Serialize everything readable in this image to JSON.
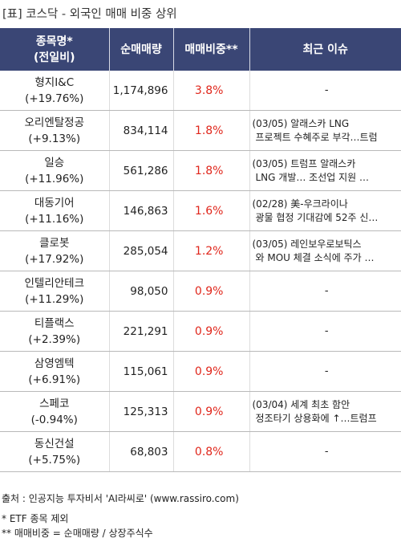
{
  "title": "[표] 코스닥 - 외국인 매매 비중 상위",
  "columns": {
    "name_line1": "종목명*",
    "name_line2": "(전일비)",
    "volume": "순매매량",
    "ratio": "매매비중**",
    "issue": "최근 이슈"
  },
  "rows": [
    {
      "name": "형지I&C",
      "change": "(+19.76%)",
      "volume": "1,174,896",
      "ratio": "3.8%",
      "issue1": "",
      "issue2": "",
      "issue_empty": "-"
    },
    {
      "name": "오리엔탈정공",
      "change": "(+9.13%)",
      "volume": "834,114",
      "ratio": "1.8%",
      "issue1": "(03/05) 알래스카 LNG",
      "issue2": "프로젝트 수혜주로 부각…트럼",
      "issue_empty": ""
    },
    {
      "name": "일승",
      "change": "(+11.96%)",
      "volume": "561,286",
      "ratio": "1.8%",
      "issue1": "(03/05) 트럼프 알래스카",
      "issue2": "LNG 개발… 조선업 지원 …",
      "issue_empty": ""
    },
    {
      "name": "대동기어",
      "change": "(+11.16%)",
      "volume": "146,863",
      "ratio": "1.6%",
      "issue1": "(02/28) 美-우크라이나",
      "issue2": "광물 협정 기대감에 52주 신…",
      "issue_empty": ""
    },
    {
      "name": "클로봇",
      "change": "(+17.92%)",
      "volume": "285,054",
      "ratio": "1.2%",
      "issue1": "(03/05) 레인보우로보틱스",
      "issue2": "와 MOU 체결 소식에 주가 …",
      "issue_empty": ""
    },
    {
      "name": "인텔리안테크",
      "change": "(+11.29%)",
      "volume": "98,050",
      "ratio": "0.9%",
      "issue1": "",
      "issue2": "",
      "issue_empty": "-"
    },
    {
      "name": "티플랙스",
      "change": "(+2.39%)",
      "volume": "221,291",
      "ratio": "0.9%",
      "issue1": "",
      "issue2": "",
      "issue_empty": "-"
    },
    {
      "name": "삼영엠텍",
      "change": "(+6.91%)",
      "volume": "115,061",
      "ratio": "0.9%",
      "issue1": "",
      "issue2": "",
      "issue_empty": "-"
    },
    {
      "name": "스페코",
      "change": "(-0.94%)",
      "volume": "125,313",
      "ratio": "0.9%",
      "issue1": "(03/04) 세계 최초 함안",
      "issue2": "정조타기 상용화에 ↑…트럼프",
      "issue_empty": ""
    },
    {
      "name": "동신건설",
      "change": "(+5.75%)",
      "volume": "68,803",
      "ratio": "0.8%",
      "issue1": "",
      "issue2": "",
      "issue_empty": "-"
    }
  ],
  "footer": {
    "source": "출처 : 인공지능 투자비서 'AI라씨로' (www.rassiro.com)",
    "note1": "* ETF 종목 제외",
    "note2": "** 매매비중 = 순매매량 / 상장주식수"
  }
}
